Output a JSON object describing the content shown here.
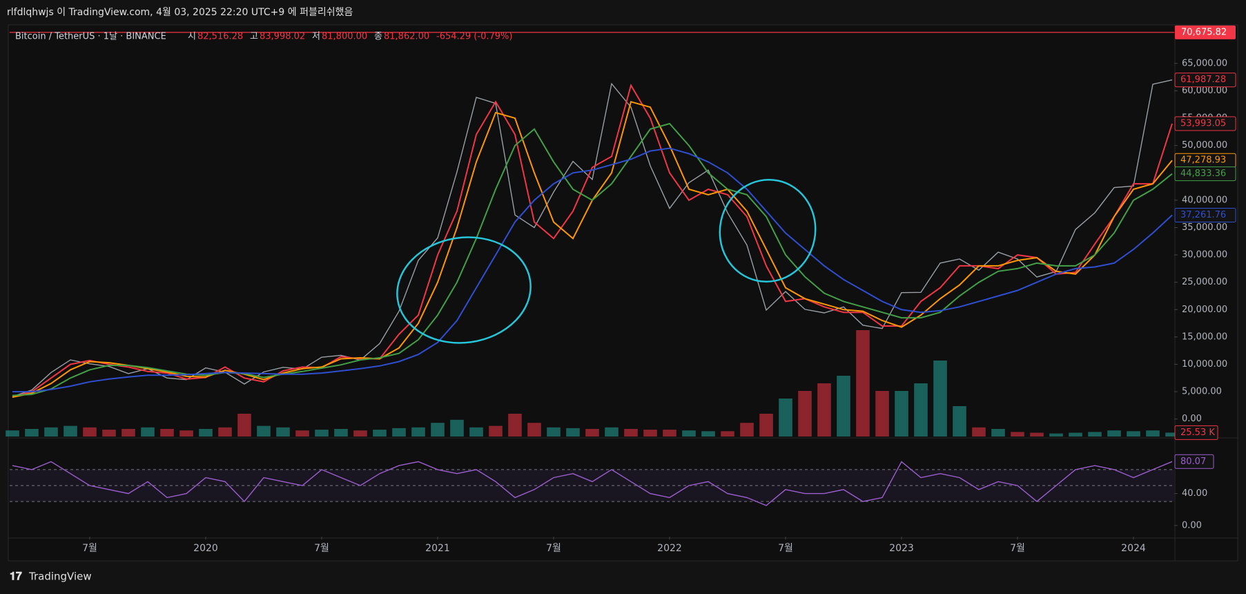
{
  "header": {
    "text": "rlfdlqhwjs 이 TradingView.com, 4월 03, 2025 22:20 UTC+9 에 퍼블리쉬했음"
  },
  "footer": {
    "brand": "TradingView"
  },
  "chart_data": {
    "type": "line",
    "title": "Bitcoin / TetherUS · 1날 · BINANCE",
    "ohlc": [
      {
        "label": "시",
        "value": "82,516.28"
      },
      {
        "label": "고",
        "value": "83,998.02"
      },
      {
        "label": "저",
        "value": "81,800.00"
      },
      {
        "label": "종",
        "value": "81,862.00"
      }
    ],
    "change": "-654.29 (-0.79%)",
    "x": [
      "2019-03",
      "2019-04",
      "2019-05",
      "2019-06",
      "2019-07",
      "2019-08",
      "2019-09",
      "2019-10",
      "2019-11",
      "2019-12",
      "2020-01",
      "2020-02",
      "2020-03",
      "2020-04",
      "2020-05",
      "2020-06",
      "2020-07",
      "2020-08",
      "2020-09",
      "2020-10",
      "2020-11",
      "2020-12",
      "2021-01",
      "2021-02",
      "2021-03",
      "2021-04",
      "2021-05",
      "2021-06",
      "2021-07",
      "2021-08",
      "2021-09",
      "2021-10",
      "2021-11",
      "2021-12",
      "2022-01",
      "2022-02",
      "2022-03",
      "2022-04",
      "2022-05",
      "2022-06",
      "2022-07",
      "2022-08",
      "2022-09",
      "2022-10",
      "2022-11",
      "2022-12",
      "2023-01",
      "2023-02",
      "2023-03",
      "2023-04",
      "2023-05",
      "2023-06",
      "2023-07",
      "2023-08",
      "2023-09",
      "2023-10",
      "2023-11",
      "2023-12",
      "2024-01",
      "2024-02",
      "2024-03"
    ],
    "xticks": [
      {
        "value": "2019-07",
        "label": "7월"
      },
      {
        "value": "2020-01",
        "label": "2020"
      },
      {
        "value": "2020-07",
        "label": "7월"
      },
      {
        "value": "2021-01",
        "label": "2021"
      },
      {
        "value": "2021-07",
        "label": "7월"
      },
      {
        "value": "2022-01",
        "label": "2022"
      },
      {
        "value": "2022-07",
        "label": "7월"
      },
      {
        "value": "2023-01",
        "label": "2023"
      },
      {
        "value": "2023-07",
        "label": "7월"
      },
      {
        "value": "2024-01",
        "label": "2024"
      }
    ],
    "ylim": [
      -3200,
      71800
    ],
    "yticks": [
      {
        "value": 0,
        "label": "0.00"
      },
      {
        "value": 5000,
        "label": "5,000.00"
      },
      {
        "value": 10000,
        "label": "10,000.00"
      },
      {
        "value": 15000,
        "label": "15,000.00"
      },
      {
        "value": 20000,
        "label": "20,000.00"
      },
      {
        "value": 25000,
        "label": "25,000.00"
      },
      {
        "value": 30000,
        "label": "30,000.00"
      },
      {
        "value": 35000,
        "label": "35,000.00"
      },
      {
        "value": 40000,
        "label": "40,000.00"
      },
      {
        "value": 45000,
        "label": "45,000.00"
      },
      {
        "value": 50000,
        "label": "50,000.00"
      },
      {
        "value": 55000,
        "label": "55,000.00"
      },
      {
        "value": 60000,
        "label": "60,000.00"
      },
      {
        "value": 65000,
        "label": "65,000.00"
      }
    ],
    "series": [
      {
        "color": "#9aa0a6",
        "values": [
          4100,
          5300,
          8500,
          10800,
          10100,
          9600,
          8300,
          9200,
          7500,
          7200,
          9350,
          8550,
          6400,
          8600,
          9450,
          9140,
          11300,
          11650,
          10780,
          13800,
          19700,
          29000,
          33100,
          45200,
          58800,
          57700,
          37300,
          35000,
          41500,
          47100,
          43800,
          61300,
          57000,
          46300,
          38500,
          43200,
          45500,
          37700,
          31800,
          19900,
          23300,
          20050,
          19400,
          20500,
          17150,
          16550,
          23100,
          23150,
          28500,
          29250,
          27200,
          30500,
          29250,
          25950,
          26970,
          34650,
          37700,
          42300,
          42600,
          61200,
          61987.28
        ]
      },
      {
        "color": "#f23645",
        "values": [
          4000,
          5000,
          7500,
          10000,
          10700,
          10000,
          9500,
          8700,
          8400,
          7300,
          7600,
          9500,
          7500,
          6800,
          8800,
          9500,
          9400,
          11400,
          11000,
          11000,
          15500,
          19000,
          30000,
          38000,
          52000,
          58000,
          52000,
          36000,
          33000,
          38000,
          46000,
          48000,
          61000,
          55000,
          45000,
          40000,
          42000,
          41000,
          37000,
          28000,
          21500,
          22000,
          20500,
          19500,
          19500,
          17000,
          17000,
          21500,
          24000,
          28000,
          28000,
          27500,
          30000,
          29500,
          26500,
          26800,
          32000,
          37000,
          43000,
          43000,
          53993.05
        ]
      },
      {
        "color": "#ff9800",
        "values": [
          4000,
          4700,
          6500,
          9000,
          10500,
          10300,
          9800,
          9200,
          8600,
          7800,
          7700,
          8900,
          8200,
          7200,
          8400,
          9200,
          9500,
          11000,
          11200,
          11000,
          13000,
          17500,
          25000,
          35000,
          47000,
          56000,
          55000,
          45000,
          36000,
          33000,
          40000,
          45000,
          58000,
          57000,
          50000,
          42000,
          41000,
          42000,
          38000,
          31000,
          24000,
          22000,
          21000,
          20000,
          19700,
          18000,
          16800,
          19000,
          22000,
          24500,
          28000,
          28000,
          29000,
          29500,
          27000,
          26500,
          30000,
          37000,
          42000,
          43000,
          47278.93
        ]
      },
      {
        "color": "#43a047",
        "values": [
          4300,
          4500,
          5500,
          7500,
          9000,
          9800,
          9800,
          9400,
          8800,
          8200,
          8000,
          8500,
          8300,
          7600,
          8200,
          8700,
          9300,
          9900,
          10800,
          11200,
          12000,
          14500,
          19000,
          25000,
          33000,
          42000,
          50000,
          53000,
          47000,
          42000,
          40000,
          43000,
          48000,
          53000,
          54000,
          50000,
          45000,
          42000,
          41000,
          37000,
          30000,
          26000,
          23000,
          21500,
          20500,
          19500,
          18500,
          18500,
          19500,
          22500,
          25000,
          27000,
          27500,
          28500,
          28000,
          28000,
          30000,
          34000,
          40000,
          42000,
          44833.36
        ]
      },
      {
        "color": "#2f4fd1",
        "values": [
          5000,
          5000,
          5400,
          6000,
          6800,
          7300,
          7700,
          8000,
          8000,
          8100,
          8300,
          8500,
          8400,
          8300,
          8200,
          8200,
          8400,
          8800,
          9200,
          9700,
          10500,
          11800,
          14000,
          18000,
          24000,
          30000,
          36000,
          40000,
          43000,
          45000,
          45500,
          46500,
          47500,
          49000,
          49500,
          48500,
          47000,
          45000,
          42000,
          38000,
          34000,
          31000,
          28000,
          25500,
          23500,
          21500,
          20000,
          19500,
          19800,
          20500,
          21500,
          22500,
          23500,
          25000,
          26500,
          27500,
          27800,
          28500,
          31000,
          34000,
          37261.76
        ]
      }
    ],
    "alert_line": {
      "value": 70675.82,
      "label": "70,675.82",
      "color": "#f23645"
    },
    "badges": [
      {
        "value": 61987.28,
        "label": "61,987.28",
        "color": "#f23645"
      },
      {
        "value": 53993.05,
        "label": "53,993.05",
        "color": "#f23645"
      },
      {
        "value": 47278.93,
        "label": "47,278.93",
        "color": "#ff9800"
      },
      {
        "value": 44833.36,
        "label": "44,833.36",
        "color": "#43a047"
      },
      {
        "value": 37261.76,
        "label": "37,261.76",
        "color": "#2f4fd1"
      }
    ],
    "volume": {
      "ylim": [
        0,
        2700
      ],
      "up_color": "#26a69a",
      "down_color": "#f23645",
      "values": [
        40,
        50,
        60,
        70,
        60,
        45,
        50,
        60,
        50,
        40,
        50,
        60,
        150,
        70,
        60,
        40,
        45,
        50,
        40,
        45,
        55,
        60,
        90,
        110,
        60,
        70,
        150,
        90,
        60,
        55,
        50,
        60,
        50,
        45,
        45,
        40,
        35,
        35,
        90,
        150,
        250,
        300,
        350,
        400,
        700,
        300,
        300,
        350,
        500,
        200,
        60,
        50,
        30,
        25,
        20,
        25,
        30,
        40,
        35,
        40,
        25.53
      ],
      "badge": {
        "value": 25.53,
        "label": "25.53 K",
        "color": "#f23645"
      }
    },
    "rsi": {
      "color": "#9c5fd0",
      "ylim": [
        -14,
        108
      ],
      "yticks": [
        {
          "value": 40,
          "label": "40.00"
        },
        {
          "value": 0,
          "label": "0.00"
        }
      ],
      "levels": [
        70,
        50,
        30
      ],
      "values": [
        75,
        70,
        80,
        65,
        50,
        45,
        40,
        55,
        35,
        40,
        60,
        55,
        30,
        60,
        55,
        50,
        70,
        60,
        50,
        65,
        75,
        80,
        70,
        65,
        70,
        55,
        35,
        45,
        60,
        65,
        55,
        70,
        55,
        40,
        35,
        50,
        55,
        40,
        35,
        25,
        45,
        40,
        40,
        45,
        30,
        35,
        80,
        60,
        65,
        60,
        45,
        55,
        50,
        30,
        50,
        70,
        75,
        70,
        60,
        70,
        80.07
      ],
      "badge": {
        "value": 80.07,
        "label": "80.07",
        "color": "#9c5fd0"
      }
    }
  }
}
